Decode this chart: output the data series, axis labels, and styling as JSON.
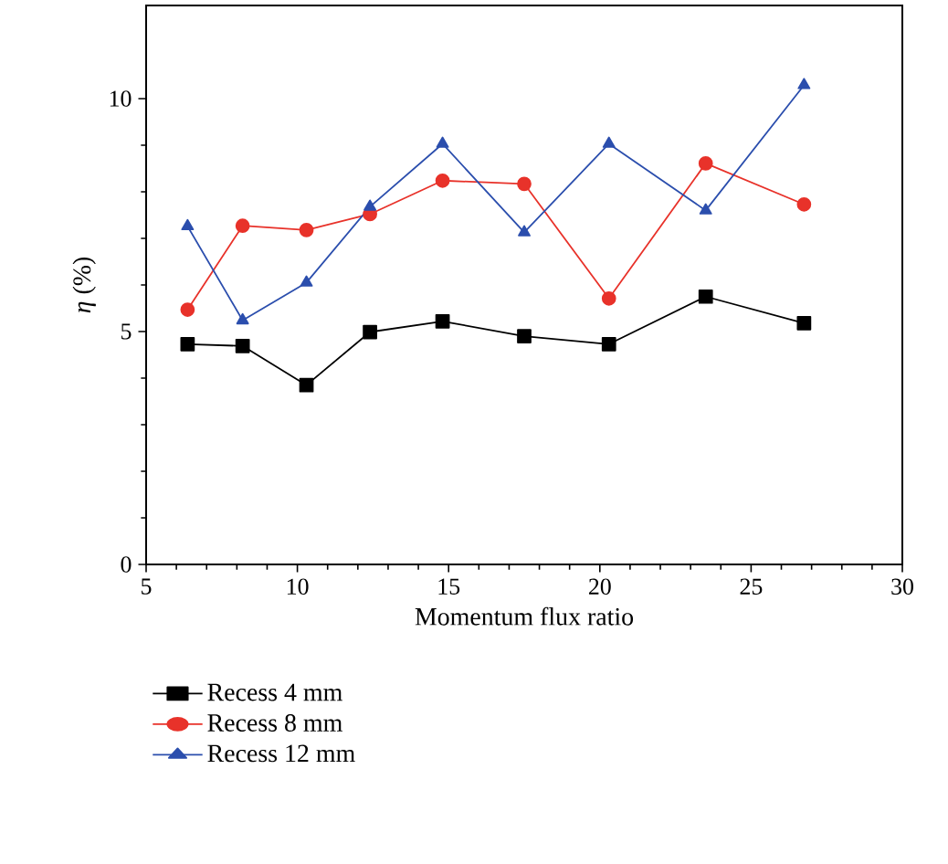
{
  "chart_data": {
    "type": "line",
    "xlabel": "Momentum flux ratio",
    "ylabel": "*η* (%)",
    "xlim": [
      5,
      30
    ],
    "xticks": [
      5,
      10,
      15,
      20,
      25,
      30
    ],
    "ylim": [
      0,
      12
    ],
    "yticks": [
      0,
      5,
      10
    ],
    "x": [
      6.37,
      8.19,
      10.3,
      12.4,
      14.8,
      17.5,
      20.3,
      23.5,
      26.75
    ],
    "legend": "bottom",
    "grid": false,
    "series": [
      {
        "name": "Recess 4 mm",
        "color": "#000000",
        "marker": "square",
        "values": [
          4.73,
          4.69,
          3.85,
          4.99,
          5.22,
          4.9,
          4.73,
          5.75,
          5.18
        ]
      },
      {
        "name": "Recess 8 mm",
        "color": "#e8322a",
        "marker": "circle",
        "values": [
          5.47,
          7.27,
          7.18,
          7.52,
          8.24,
          8.17,
          5.71,
          8.61,
          7.73
        ]
      },
      {
        "name": "Recess 12 mm",
        "color": "#2b4ead",
        "marker": "triangle",
        "values": [
          7.26,
          5.24,
          6.05,
          7.68,
          9.03,
          7.13,
          9.03,
          7.6,
          10.29
        ]
      }
    ]
  }
}
